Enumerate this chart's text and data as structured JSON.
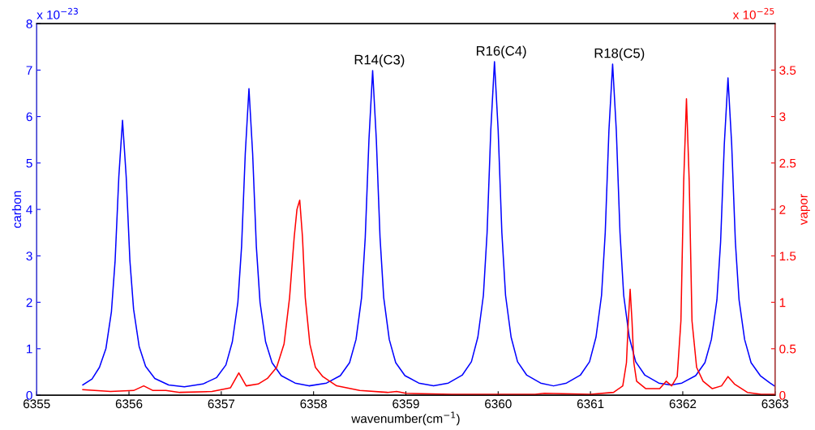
{
  "chart_data": {
    "type": "line",
    "xlabel": "wavenumber(cm$^{−1}$)",
    "ylabel": "carbon",
    "y2label": "vapor",
    "xlim": [
      6355,
      6363
    ],
    "xticks": [
      6355,
      6356,
      6357,
      6358,
      6359,
      6360,
      6361,
      6362,
      6363
    ],
    "ylim": [
      0,
      8
    ],
    "yticks": [
      0,
      1,
      2,
      3,
      4,
      5,
      6,
      7,
      8
    ],
    "y2lim": [
      0,
      4
    ],
    "y2ticks": [
      0,
      0.5,
      1,
      1.5,
      2,
      2.5,
      3,
      3.5
    ],
    "grid": false,
    "legend": false,
    "marker": "none",
    "line_style": "solid",
    "annotations": [
      "x 10$^{−23}$",
      "x 10$^{−25}$",
      {
        "text": "R14(C3)",
        "x": 6358.64,
        "y": 6.99
      },
      {
        "text": "R16(C4)",
        "x": 6359.96,
        "y": 7.18
      },
      {
        "text": "R18(C5)",
        "x": 6361.24,
        "y": 7.13
      }
    ],
    "series": [
      {
        "color": "#0000ff",
        "x": [
          6355.5,
          6355.6,
          6355.68,
          6355.75,
          6355.81,
          6355.85,
          6355.89,
          6355.93,
          6355.97,
          6356.01,
          6356.05,
          6356.11,
          6356.18,
          6356.28,
          6356.43,
          6356.6,
          6356.8,
          6356.95,
          6357.05,
          6357.12,
          6357.18,
          6357.22,
          6357.26,
          6357.3,
          6357.34,
          6357.38,
          6357.42,
          6357.48,
          6357.55,
          6357.65,
          6357.8,
          6357.95,
          6358.14,
          6358.29,
          6358.39,
          6358.46,
          6358.52,
          6358.56,
          6358.6,
          6358.64,
          6358.68,
          6358.72,
          6358.76,
          6358.82,
          6358.89,
          6358.99,
          6359.14,
          6359.3,
          6359.46,
          6359.61,
          6359.71,
          6359.78,
          6359.84,
          6359.88,
          6359.92,
          6359.96,
          6360.0,
          6360.04,
          6360.08,
          6360.14,
          6360.21,
          6360.31,
          6360.46,
          6360.6,
          6360.74,
          6360.89,
          6360.99,
          6361.06,
          6361.12,
          6361.16,
          6361.2,
          6361.24,
          6361.28,
          6361.32,
          6361.36,
          6361.42,
          6361.49,
          6361.59,
          6361.74,
          6361.87,
          6361.99,
          6362.14,
          6362.24,
          6362.31,
          6362.37,
          6362.41,
          6362.45,
          6362.49,
          6362.53,
          6362.57,
          6362.61,
          6362.67,
          6362.74,
          6362.84,
          6362.94,
          6363.0
        ],
        "values": [
          0.22,
          0.35,
          0.6,
          1.0,
          1.8,
          2.9,
          4.7,
          5.92,
          4.7,
          2.9,
          1.85,
          1.05,
          0.62,
          0.36,
          0.22,
          0.18,
          0.24,
          0.38,
          0.65,
          1.15,
          2.0,
          3.2,
          5.2,
          6.6,
          5.2,
          3.2,
          2.0,
          1.15,
          0.7,
          0.42,
          0.26,
          0.2,
          0.26,
          0.42,
          0.7,
          1.2,
          2.1,
          3.4,
          5.5,
          6.99,
          5.5,
          3.4,
          2.1,
          1.2,
          0.7,
          0.42,
          0.26,
          0.2,
          0.26,
          0.43,
          0.72,
          1.25,
          2.15,
          3.5,
          5.7,
          7.18,
          5.7,
          3.5,
          2.15,
          1.25,
          0.72,
          0.43,
          0.26,
          0.2,
          0.26,
          0.43,
          0.72,
          1.25,
          2.15,
          3.5,
          5.7,
          7.13,
          5.7,
          3.5,
          2.15,
          1.25,
          0.72,
          0.43,
          0.26,
          0.22,
          0.26,
          0.42,
          0.7,
          1.2,
          2.05,
          3.3,
          5.4,
          6.83,
          5.4,
          3.3,
          2.05,
          1.2,
          0.7,
          0.42,
          0.27,
          0.19
        ]
      },
      {
        "color": "#ff0000",
        "axis": "y2",
        "x": [
          6355.5,
          6355.8,
          6356.05,
          6356.16,
          6356.26,
          6356.4,
          6356.55,
          6356.9,
          6357.1,
          6357.19,
          6357.27,
          6357.4,
          6357.5,
          6357.6,
          6357.68,
          6357.74,
          6357.79,
          6357.82,
          6357.85,
          6357.88,
          6357.91,
          6357.96,
          6358.02,
          6358.1,
          6358.25,
          6358.5,
          6358.8,
          6358.9,
          6359.0,
          6359.5,
          6360.0,
          6360.4,
          6360.5,
          6361.0,
          6361.25,
          6361.35,
          6361.39,
          6361.41,
          6361.43,
          6361.45,
          6361.47,
          6361.5,
          6361.6,
          6361.75,
          6361.82,
          6361.88,
          6361.94,
          6361.98,
          6362.01,
          6362.04,
          6362.07,
          6362.1,
          6362.15,
          6362.22,
          6362.32,
          6362.42,
          6362.49,
          6362.56,
          6362.7,
          6362.85,
          6363.0
        ],
        "values": [
          0.06,
          0.04,
          0.05,
          0.1,
          0.05,
          0.05,
          0.03,
          0.04,
          0.08,
          0.24,
          0.1,
          0.12,
          0.18,
          0.3,
          0.55,
          1.05,
          1.7,
          2.0,
          2.1,
          1.7,
          1.05,
          0.55,
          0.3,
          0.2,
          0.1,
          0.05,
          0.03,
          0.04,
          0.02,
          0.01,
          0.01,
          0.01,
          0.02,
          0.01,
          0.03,
          0.1,
          0.35,
          0.8,
          1.14,
          0.8,
          0.35,
          0.15,
          0.07,
          0.07,
          0.15,
          0.1,
          0.2,
          0.8,
          2.3,
          3.19,
          2.3,
          0.8,
          0.3,
          0.15,
          0.07,
          0.1,
          0.2,
          0.12,
          0.03,
          0.01,
          0.01
        ]
      }
    ]
  }
}
